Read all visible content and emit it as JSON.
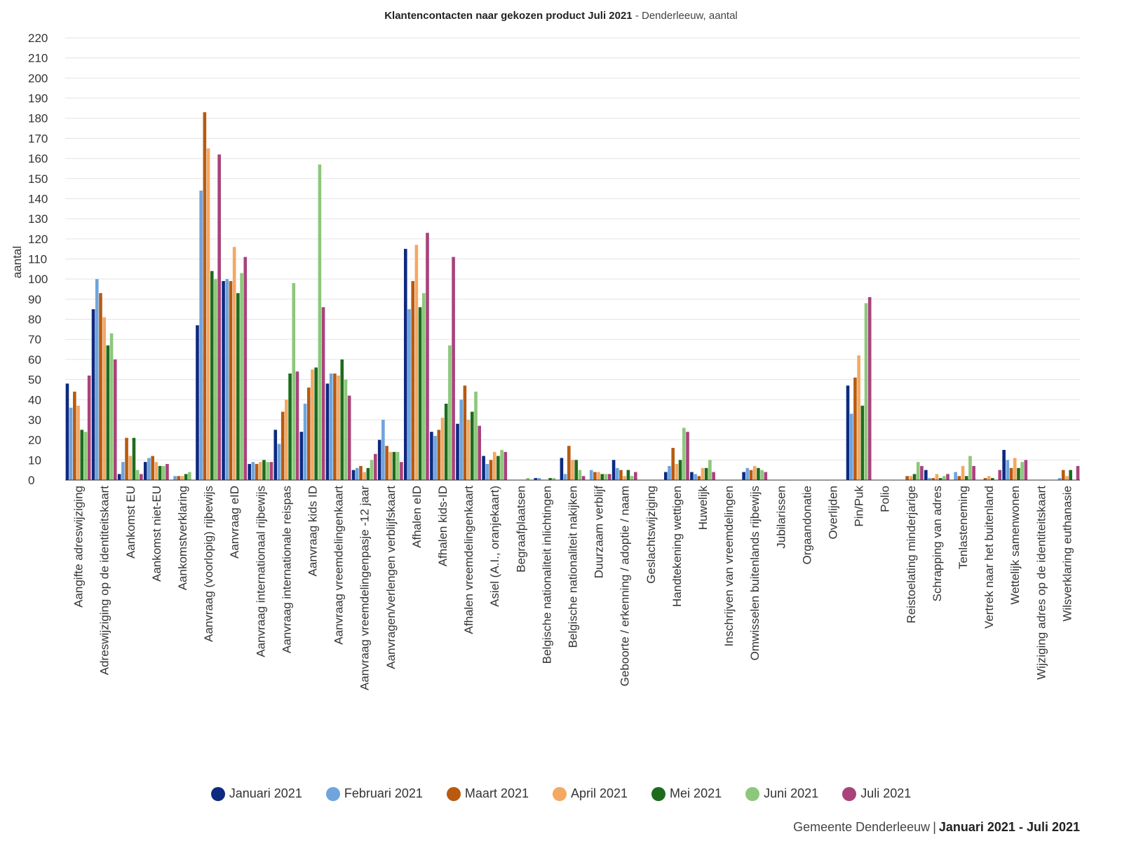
{
  "footer": {
    "organisation": "Gemeente Denderleeuw",
    "separator": "|",
    "period": "Januari 2021 - Juli 2021"
  },
  "chart_data": {
    "type": "bar",
    "title": "Klantencontacten naar gekozen product Juli 2021",
    "subtitle": "Denderleeuw, aantal",
    "title_separator": "-",
    "xlabel": "",
    "ylabel": "aantal",
    "ylim": [
      0,
      220
    ],
    "yticks": [
      0,
      10,
      20,
      30,
      40,
      50,
      60,
      70,
      80,
      90,
      100,
      110,
      120,
      130,
      140,
      150,
      160,
      170,
      180,
      190,
      200,
      210,
      220
    ],
    "grid": true,
    "legend_position": "bottom-center",
    "categories": [
      "Aangifte adreswijziging",
      "Adreswijziging op de identiteitskaart",
      "Aankomst EU",
      "Aankomst niet-EU",
      "Aankomstverklaring",
      "Aanvraag (voorlopig) rijbewijs",
      "Aanvraag eID",
      "Aanvraag internationaal rijbewijs",
      "Aanvraag internationale reispas",
      "Aanvraag kids ID",
      "Aanvraag vreemdelingenkaart",
      "Aanvraag vreemdelingenpasje -12 jaar",
      "Aanvragen/verlengen verblijfskaart",
      "Afhalen eID",
      "Afhalen kids-ID",
      "Afhalen vreemdelingenkaart",
      "Asiel (A.I., oranjekaart)",
      "Begraafplaatsen",
      "Belgische nationaliteit inlichtingen",
      "Belgische nationaliteit nakijken",
      "Duurzaam verblijf",
      "Geboorte / erkenning / adoptie / naam",
      "Geslachtswijziging",
      "Handtekening wettigen",
      "Huwelijk",
      "Inschrijven van vreemdelingen",
      "Omwisselen buitenlands rijbewijs",
      "Jubilarissen",
      "Orgaandonatie",
      "Overlijden",
      "Pin/Puk",
      "Polio",
      "Reistoelating minderjarige",
      "Schrapping van adres",
      "Tenlasteneming",
      "Vertrek naar het buitenland",
      "Wettelijk samenwonen",
      "Wijziging adres op de identiteitskaart",
      "Wilsverklaring euthanasie"
    ],
    "series": [
      {
        "name": "Januari 2021",
        "color": "#0d2a80",
        "values": [
          48,
          85,
          3,
          9,
          0,
          77,
          99,
          8,
          25,
          24,
          48,
          5,
          20,
          115,
          24,
          28,
          12,
          0,
          1,
          11,
          0,
          10,
          0,
          4,
          4,
          0,
          4,
          0,
          0,
          0,
          47,
          0,
          0,
          5,
          0,
          0,
          15,
          0,
          0
        ]
      },
      {
        "name": "Februari 2021",
        "color": "#6fa4dc",
        "values": [
          36,
          100,
          9,
          11,
          2,
          144,
          100,
          9,
          18,
          38,
          53,
          6,
          30,
          85,
          22,
          40,
          8,
          0,
          1,
          3,
          5,
          6,
          0,
          7,
          3,
          0,
          6,
          0,
          0,
          0,
          33,
          0,
          0,
          1,
          4,
          0,
          10,
          0,
          1
        ]
      },
      {
        "name": "Maart 2021",
        "color": "#b85a10",
        "values": [
          44,
          93,
          21,
          12,
          2,
          183,
          99,
          8,
          34,
          46,
          53,
          7,
          17,
          99,
          25,
          47,
          10,
          0,
          0,
          17,
          4,
          5,
          0,
          16,
          2,
          0,
          5,
          0,
          0,
          0,
          51,
          0,
          2,
          1,
          2,
          1,
          6,
          0,
          5
        ]
      },
      {
        "name": "April 2021",
        "color": "#f4a862",
        "values": [
          37,
          81,
          12,
          9,
          2,
          165,
          116,
          9,
          40,
          55,
          52,
          4,
          14,
          117,
          31,
          30,
          14,
          0,
          0,
          10,
          4,
          2,
          0,
          8,
          6,
          0,
          7,
          0,
          0,
          0,
          62,
          0,
          2,
          3,
          7,
          2,
          11,
          0,
          2
        ]
      },
      {
        "name": "Mei 2021",
        "color": "#1e6b1e",
        "values": [
          25,
          67,
          21,
          7,
          3,
          104,
          93,
          10,
          53,
          56,
          60,
          6,
          14,
          86,
          38,
          34,
          12,
          0,
          1,
          10,
          3,
          5,
          0,
          10,
          6,
          0,
          6,
          0,
          0,
          0,
          37,
          0,
          3,
          1,
          2,
          1,
          6,
          0,
          5
        ]
      },
      {
        "name": "Juni 2021",
        "color": "#8dc77c",
        "values": [
          24,
          73,
          5,
          7,
          4,
          100,
          103,
          9,
          98,
          157,
          50,
          10,
          14,
          93,
          67,
          44,
          15,
          1,
          1,
          5,
          3,
          2,
          0,
          26,
          10,
          0,
          5,
          0,
          0,
          0,
          88,
          0,
          9,
          2,
          12,
          0,
          9,
          0,
          0
        ]
      },
      {
        "name": "Juli 2021",
        "color": "#a8437b",
        "values": [
          52,
          60,
          3,
          8,
          0,
          162,
          111,
          9,
          54,
          86,
          42,
          13,
          9,
          123,
          111,
          27,
          14,
          0,
          0,
          2,
          3,
          4,
          0,
          24,
          4,
          0,
          4,
          0,
          0,
          0,
          91,
          0,
          7,
          3,
          7,
          5,
          10,
          0,
          7
        ]
      }
    ]
  }
}
